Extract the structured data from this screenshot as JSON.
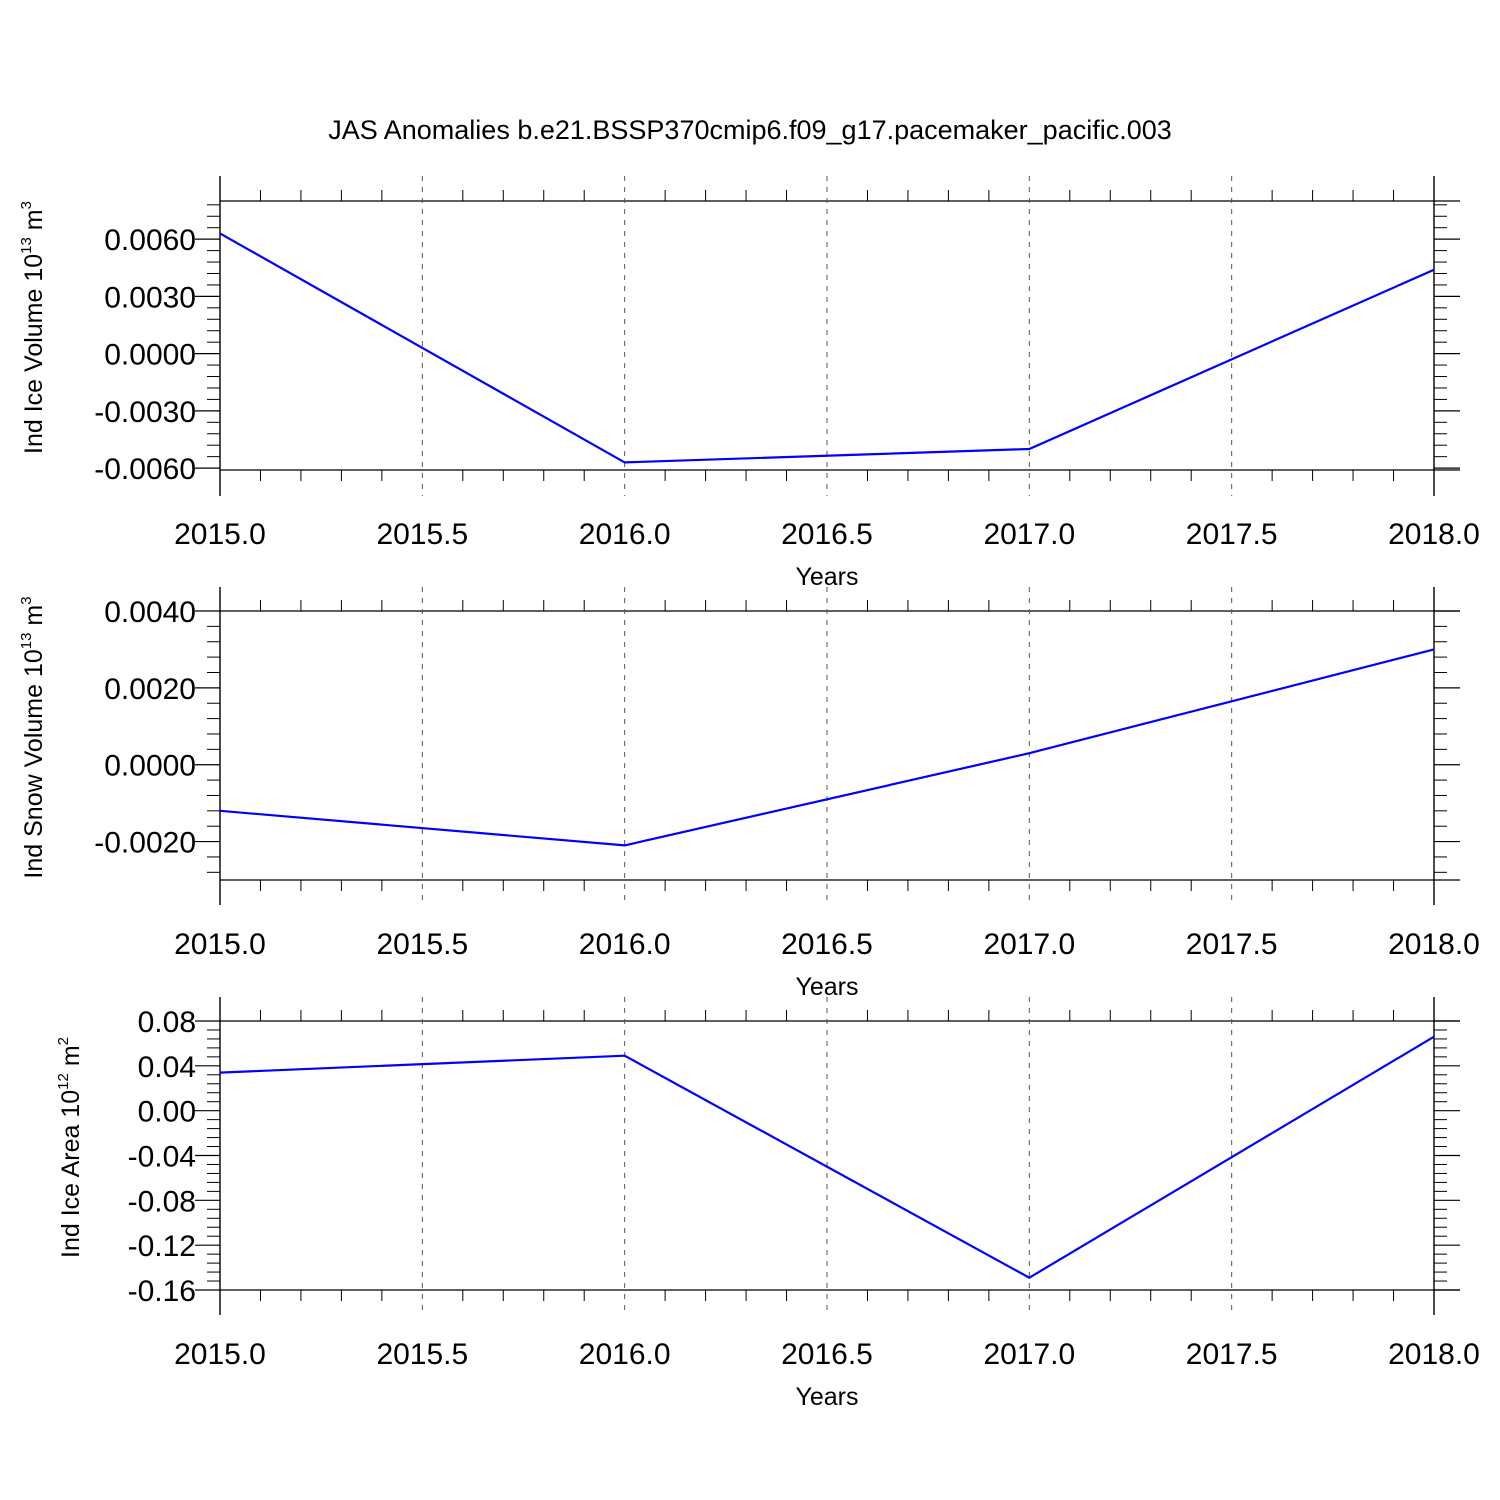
{
  "figure": {
    "title": "JAS Anomalies b.e21.BSSP370cmip6.f09_g17.pacemaker_pacific.003",
    "line_color": "#0000ff"
  },
  "chart_data": [
    {
      "type": "line",
      "x": [
        2015,
        2016,
        2017,
        2018
      ],
      "series": [
        {
          "values": [
            0.0063,
            -0.0057,
            -0.005,
            0.0044
          ]
        }
      ],
      "xlim": [
        2015.0,
        2018.0
      ],
      "ylim": [
        -0.0061,
        0.008
      ],
      "xticks": [
        "2015.0",
        "2015.5",
        "2016.0",
        "2016.5",
        "2017.0",
        "2017.5",
        "2018.0"
      ],
      "yticks": [
        "0.0060",
        "0.0030",
        "0.0000",
        "-0.0030",
        "-0.0060"
      ],
      "ytick_values": [
        0.006,
        0.003,
        0.0,
        -0.003,
        -0.006
      ],
      "xlabel": "Years",
      "ylabel": "Ind Ice Volume 10",
      "ylabel_exp": "13",
      "ylabel_unit": " m",
      "ylabel_unit_exp": "3",
      "grid": "vertical dashed"
    },
    {
      "type": "line",
      "x": [
        2015,
        2016,
        2017,
        2018
      ],
      "series": [
        {
          "values": [
            -0.0012,
            -0.0021,
            0.0003,
            0.003
          ]
        }
      ],
      "xlim": [
        2015.0,
        2018.0
      ],
      "ylim": [
        -0.003,
        0.004
      ],
      "xticks": [
        "2015.0",
        "2015.5",
        "2016.0",
        "2016.5",
        "2017.0",
        "2017.5",
        "2018.0"
      ],
      "yticks": [
        "0.0040",
        "0.0020",
        "0.0000",
        "-0.0020"
      ],
      "ytick_values": [
        0.004,
        0.002,
        0.0,
        -0.002
      ],
      "xlabel": "Years",
      "ylabel": "Ind Snow Volume 10",
      "ylabel_exp": "13",
      "ylabel_unit": " m",
      "ylabel_unit_exp": "3",
      "grid": "vertical dashed"
    },
    {
      "type": "line",
      "x": [
        2015,
        2016,
        2017,
        2018
      ],
      "series": [
        {
          "values": [
            0.034,
            0.049,
            -0.149,
            0.066
          ]
        }
      ],
      "xlim": [
        2015.0,
        2018.0
      ],
      "ylim": [
        -0.16,
        0.08
      ],
      "xticks": [
        "2015.0",
        "2015.5",
        "2016.0",
        "2016.5",
        "2017.0",
        "2017.5",
        "2018.0"
      ],
      "yticks": [
        "0.08",
        "0.04",
        "0.00",
        "-0.04",
        "-0.08",
        "-0.12",
        "-0.16"
      ],
      "ytick_values": [
        0.08,
        0.04,
        0.0,
        -0.04,
        -0.08,
        -0.12,
        -0.16
      ],
      "xlabel": "Years",
      "ylabel": "Ind Ice Area 10",
      "ylabel_exp": "12",
      "ylabel_unit": " m",
      "ylabel_unit_exp": "2",
      "grid": "vertical dashed"
    }
  ]
}
